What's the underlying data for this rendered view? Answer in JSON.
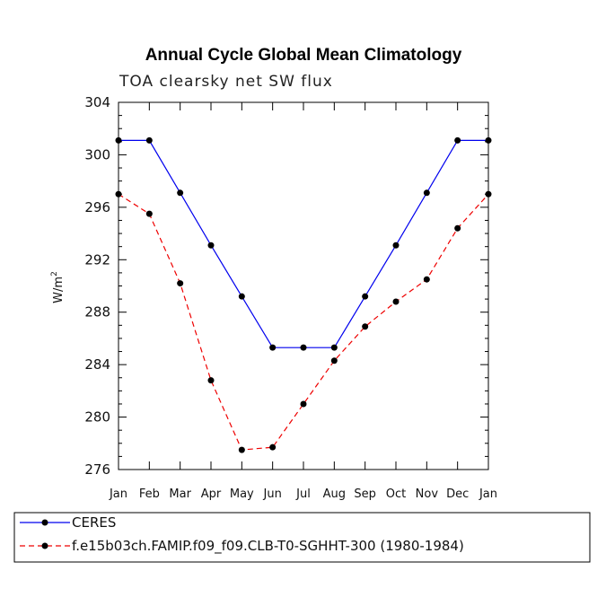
{
  "chart_data": {
    "type": "line",
    "title": "Annual Cycle Global Mean Climatology",
    "subtitle": "TOA clearsky net SW flux",
    "xlabel": "",
    "ylabel": "W/m",
    "ylabel_sup": "2",
    "categories": [
      "Jan",
      "Feb",
      "Mar",
      "Apr",
      "May",
      "Jun",
      "Jul",
      "Aug",
      "Sep",
      "Oct",
      "Nov",
      "Dec",
      "Jan"
    ],
    "ylim": [
      276,
      304
    ],
    "yticks": [
      276,
      280,
      284,
      288,
      292,
      296,
      300,
      304
    ],
    "series": [
      {
        "name": "CERES",
        "color": "#0000ee",
        "dash": "solid",
        "values": [
          301.1,
          301.1,
          297.1,
          293.1,
          289.2,
          285.3,
          285.3,
          285.3,
          289.2,
          293.1,
          297.1,
          301.1,
          301.1
        ]
      },
      {
        "name": "f.e15b03ch.FAMIP.f09_f09.CLB-T0-SGHHT-300 (1980-1984)",
        "color": "#ee0000",
        "dash": "dashed",
        "values": [
          297.0,
          295.5,
          290.2,
          282.8,
          277.5,
          277.7,
          281.0,
          284.3,
          286.9,
          288.8,
          290.5,
          294.4,
          297.0
        ]
      }
    ],
    "legend_position": "bottom"
  }
}
